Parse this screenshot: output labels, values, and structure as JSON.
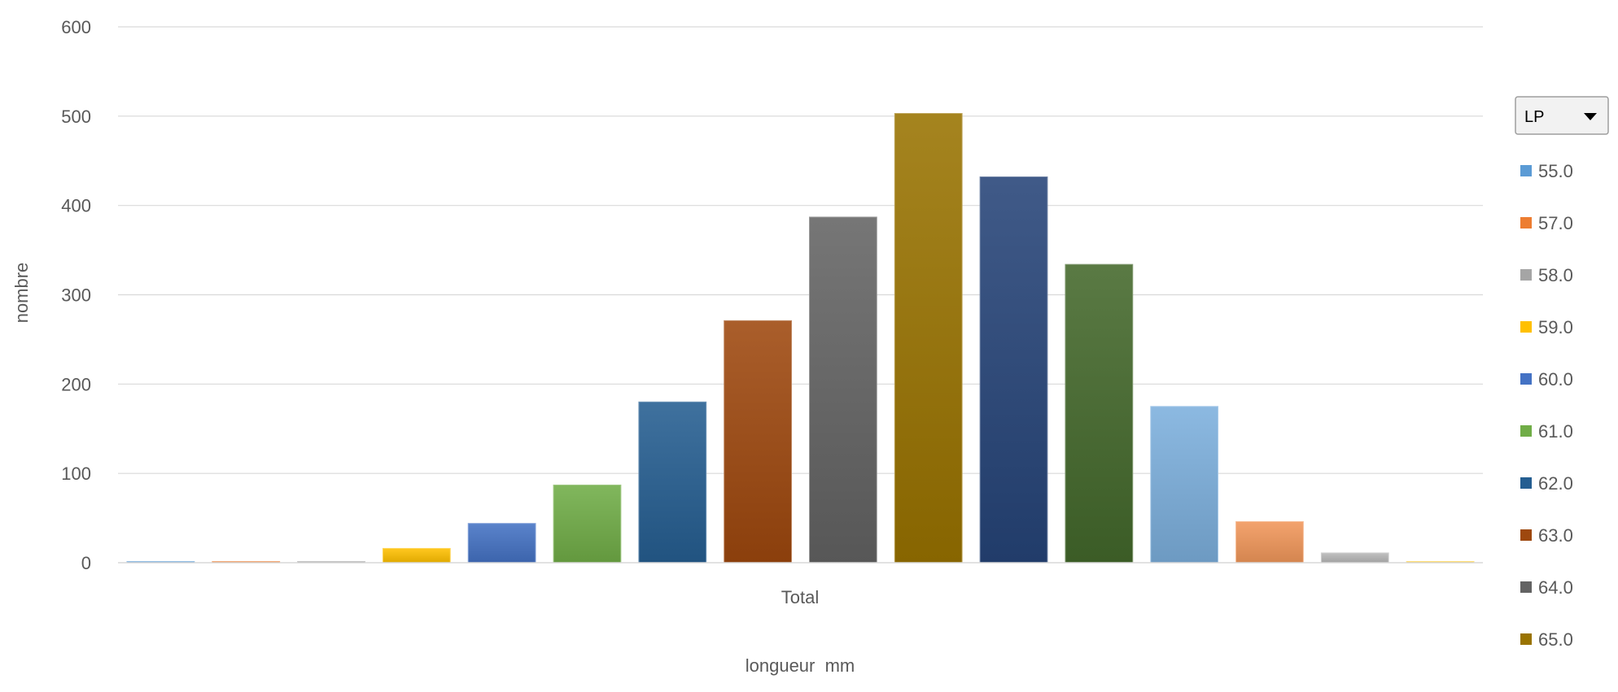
{
  "chart_data": {
    "type": "bar",
    "categories": [
      "Total"
    ],
    "xlabel": "longueur  mm",
    "ylabel": "nombre",
    "ylim": [
      0,
      600
    ],
    "yticks": [
      0,
      100,
      200,
      300,
      400,
      500,
      600
    ],
    "grid": true,
    "legend_position": "right",
    "legend_filter_label": "LP",
    "series": [
      {
        "name": "55.0",
        "values": [
          1
        ],
        "color": "#5B9BD5"
      },
      {
        "name": "57.0",
        "values": [
          1
        ],
        "color": "#ED7D31"
      },
      {
        "name": "58.0",
        "values": [
          1
        ],
        "color": "#A5A5A5"
      },
      {
        "name": "59.0",
        "values": [
          16
        ],
        "color": "#FFC000"
      },
      {
        "name": "60.0",
        "values": [
          44
        ],
        "color": "#4472C4"
      },
      {
        "name": "61.0",
        "values": [
          87
        ],
        "color": "#70AD47"
      },
      {
        "name": "62.0",
        "values": [
          180
        ],
        "color": "#255E91"
      },
      {
        "name": "63.0",
        "values": [
          271
        ],
        "color": "#9E480E"
      },
      {
        "name": "64.0",
        "values": [
          387
        ],
        "color": "#636363"
      },
      {
        "name": "65.0",
        "values": [
          503
        ],
        "color": "#997300"
      },
      {
        "name": "",
        "values": [
          432
        ],
        "color": "#264478"
      },
      {
        "name": "",
        "values": [
          334
        ],
        "color": "#43682B"
      },
      {
        "name": "",
        "values": [
          175
        ],
        "color": "#7CAFDD"
      },
      {
        "name": "",
        "values": [
          46
        ],
        "color": "#F1975A"
      },
      {
        "name": "",
        "values": [
          11
        ],
        "color": "#B7B7B7"
      },
      {
        "name": "",
        "values": [
          1
        ],
        "color": "#FFCD33"
      }
    ]
  }
}
